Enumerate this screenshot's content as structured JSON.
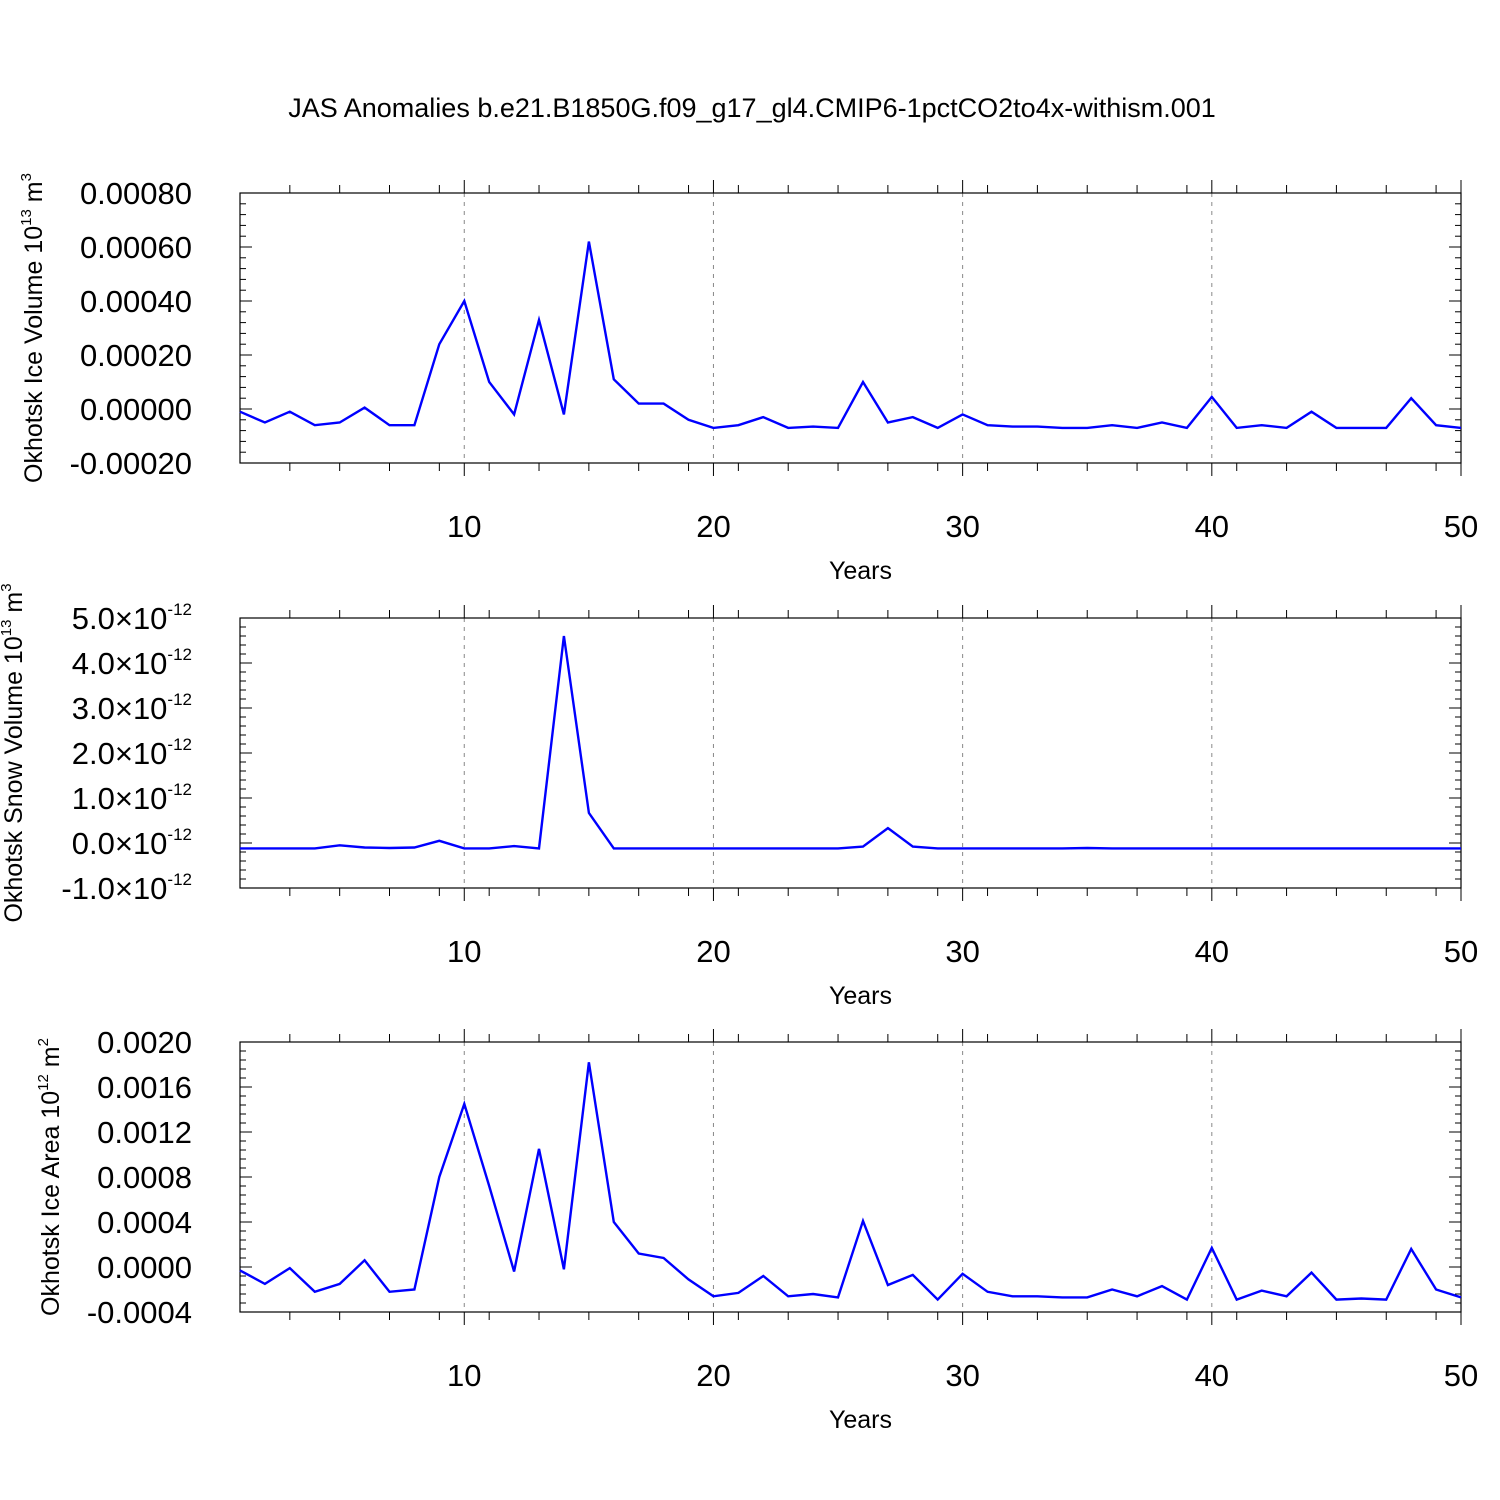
{
  "title": "JAS Anomalies b.e21.B1850G.f09_g17_gl4.CMIP6-1pctCO2to4x-withism.001",
  "colors": {
    "line": "#0000ff",
    "axis": "#000000",
    "grid": "#888888"
  },
  "chart_data": [
    {
      "type": "line",
      "xlabel": "Years",
      "ylabel": {
        "main": "Okhotsk Ice Volume 10",
        "exp": "13",
        "unit": " m",
        "unit_exp": "3"
      },
      "xlim": [
        1,
        50
      ],
      "ylim": [
        -0.0002,
        0.0008
      ],
      "xticks": [
        10,
        20,
        30,
        40,
        50
      ],
      "yticks": [
        -0.0002,
        0.0,
        0.0002,
        0.0004,
        0.0006,
        0.0008
      ],
      "ytick_labels": [
        "-0.00020",
        "0.00000",
        "0.00020",
        "0.00040",
        "0.00060",
        "0.00080"
      ],
      "grid": "vertical dashed at major x ticks",
      "x": [
        1,
        2,
        3,
        4,
        5,
        6,
        7,
        8,
        9,
        10,
        11,
        12,
        13,
        14,
        15,
        16,
        17,
        18,
        19,
        20,
        21,
        22,
        23,
        24,
        25,
        26,
        27,
        28,
        29,
        30,
        31,
        32,
        33,
        34,
        35,
        36,
        37,
        38,
        39,
        40,
        41,
        42,
        43,
        44,
        45,
        46,
        47,
        48,
        49,
        50
      ],
      "values": [
        -1e-05,
        -5e-05,
        -1e-05,
        -6e-05,
        -5e-05,
        5e-06,
        -6e-05,
        -6e-05,
        0.00024,
        0.0004,
        0.0001,
        -2e-05,
        0.00033,
        -2e-05,
        0.00062,
        0.00011,
        2e-05,
        2e-05,
        -4e-05,
        -7e-05,
        -6e-05,
        -3e-05,
        -7e-05,
        -6.5e-05,
        -7e-05,
        0.0001,
        -5e-05,
        -3e-05,
        -7e-05,
        -2e-05,
        -6e-05,
        -6.5e-05,
        -6.5e-05,
        -7e-05,
        -7e-05,
        -6e-05,
        -7e-05,
        -5e-05,
        -7e-05,
        4.5e-05,
        -7e-05,
        -6e-05,
        -7e-05,
        -1e-05,
        -7e-05,
        -7e-05,
        -7e-05,
        4e-05,
        -6e-05,
        -7e-05
      ]
    },
    {
      "type": "line",
      "xlabel": "Years",
      "ylabel": {
        "main": "Okhotsk Snow Volume 10",
        "exp": "13",
        "unit": " m",
        "unit_exp": "3"
      },
      "xlim": [
        1,
        50
      ],
      "ylim": [
        -1e-12,
        5e-12
      ],
      "xticks": [
        10,
        20,
        30,
        40,
        50
      ],
      "yticks": [
        -1e-12,
        0.0,
        1e-12,
        2e-12,
        3e-12,
        4e-12,
        5e-12
      ],
      "ytick_labels": [
        {
          "mant": "-1.0",
          "times": "×",
          "base": "10",
          "exp": "-12"
        },
        {
          "mant": "0.0",
          "times": "×",
          "base": "10",
          "exp": "-12"
        },
        {
          "mant": "1.0",
          "times": "×",
          "base": "10",
          "exp": "-12"
        },
        {
          "mant": "2.0",
          "times": "×",
          "base": "10",
          "exp": "-12"
        },
        {
          "mant": "3.0",
          "times": "×",
          "base": "10",
          "exp": "-12"
        },
        {
          "mant": "4.0",
          "times": "×",
          "base": "10",
          "exp": "-12"
        },
        {
          "mant": "5.0",
          "times": "×",
          "base": "10",
          "exp": "-12"
        }
      ],
      "grid": "vertical dashed at major x ticks",
      "x": [
        1,
        2,
        3,
        4,
        5,
        6,
        7,
        8,
        9,
        10,
        11,
        12,
        13,
        14,
        15,
        16,
        17,
        18,
        19,
        20,
        21,
        22,
        23,
        24,
        25,
        26,
        27,
        28,
        29,
        30,
        31,
        32,
        33,
        34,
        35,
        36,
        37,
        38,
        39,
        40,
        41,
        42,
        43,
        44,
        45,
        46,
        47,
        48,
        49,
        50
      ],
      "values": [
        -1.2e-13,
        -1.2e-13,
        -1.2e-13,
        -1.2e-13,
        -5e-14,
        -1e-13,
        -1.1e-13,
        -1e-13,
        5e-14,
        -1.2e-13,
        -1.2e-13,
        -7e-14,
        -1.2e-13,
        4.6e-12,
        6.7e-13,
        -1.2e-13,
        -1.2e-13,
        -1.2e-13,
        -1.2e-13,
        -1.2e-13,
        -1.2e-13,
        -1.2e-13,
        -1.2e-13,
        -1.2e-13,
        -1.2e-13,
        -8e-14,
        3.3e-13,
        -8e-14,
        -1.2e-13,
        -1.2e-13,
        -1.2e-13,
        -1.2e-13,
        -1.2e-13,
        -1.2e-13,
        -1.1e-13,
        -1.2e-13,
        -1.2e-13,
        -1.2e-13,
        -1.2e-13,
        -1.2e-13,
        -1.2e-13,
        -1.2e-13,
        -1.2e-13,
        -1.2e-13,
        -1.2e-13,
        -1.2e-13,
        -1.2e-13,
        -1.2e-13,
        -1.2e-13,
        -1.2e-13
      ]
    },
    {
      "type": "line",
      "xlabel": "Years",
      "ylabel": {
        "main": "Okhotsk Ice Area 10",
        "exp": "12",
        "unit": " m",
        "unit_exp": "2"
      },
      "xlim": [
        1,
        50
      ],
      "ylim": [
        -0.0004,
        0.002
      ],
      "xticks": [
        10,
        20,
        30,
        40,
        50
      ],
      "yticks": [
        -0.0004,
        0.0,
        0.0004,
        0.0008,
        0.0012,
        0.0016,
        0.002
      ],
      "ytick_labels": [
        "-0.0004",
        "0.0000",
        "0.0004",
        "0.0008",
        "0.0012",
        "0.0016",
        "0.0020"
      ],
      "grid": "vertical dashed at major x ticks",
      "x": [
        1,
        2,
        3,
        4,
        5,
        6,
        7,
        8,
        9,
        10,
        11,
        12,
        13,
        14,
        15,
        16,
        17,
        18,
        19,
        20,
        21,
        22,
        23,
        24,
        25,
        26,
        27,
        28,
        29,
        30,
        31,
        32,
        33,
        34,
        35,
        36,
        37,
        38,
        39,
        40,
        41,
        42,
        43,
        44,
        45,
        46,
        47,
        48,
        49,
        50
      ],
      "values": [
        -3e-05,
        -0.00015,
        -1e-05,
        -0.00022,
        -0.00015,
        6e-05,
        -0.00022,
        -0.0002,
        0.0008,
        0.00145,
        0.00072,
        -4e-05,
        0.00105,
        -2e-05,
        0.00182,
        0.0004,
        0.00012,
        8e-05,
        -0.00011,
        -0.00026,
        -0.00023,
        -8e-05,
        -0.00026,
        -0.00024,
        -0.00027,
        0.00041,
        -0.00016,
        -7e-05,
        -0.00029,
        -6e-05,
        -0.00022,
        -0.00026,
        -0.00026,
        -0.00027,
        -0.00027,
        -0.0002,
        -0.00026,
        -0.00017,
        -0.00029,
        0.00017,
        -0.00029,
        -0.00021,
        -0.00026,
        -5e-05,
        -0.00029,
        -0.00028,
        -0.00029,
        0.00016,
        -0.0002,
        -0.00027
      ]
    }
  ]
}
